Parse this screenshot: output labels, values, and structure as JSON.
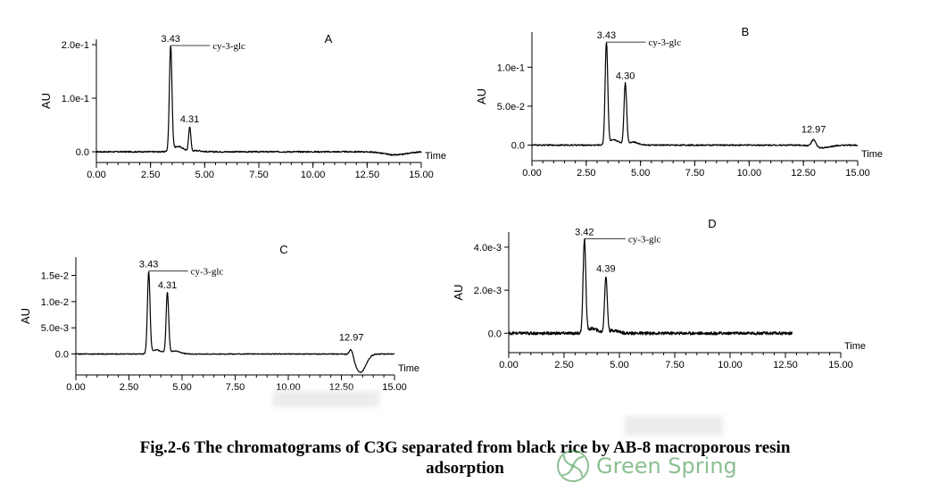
{
  "figure": {
    "caption_line1": "Fig.2-6    The chromatograms of C3G separated from black rice by AB-8 macroporous resin",
    "caption_line2": "adsorption",
    "watermark_text": "Green Spring",
    "watermark_color": "#2e8b3a"
  },
  "chart_data": [
    {
      "type": "line",
      "panel_label": "A",
      "xlabel": "Time",
      "ylabel": "AU",
      "xlim": [
        0,
        15
      ],
      "ylim": [
        -0.02,
        0.21
      ],
      "x_ticks": [
        0,
        2.5,
        5,
        7.5,
        10,
        12.5,
        15
      ],
      "x_tick_labels": [
        "0.00",
        "2.50",
        "5.00",
        "7.50",
        "10.00",
        "12.50",
        "15.00"
      ],
      "y_ticks": [
        0,
        0.1,
        0.2
      ],
      "y_tick_labels": [
        "0.0",
        "1.0e-1",
        "2.0e-1"
      ],
      "peaks": [
        {
          "rt": 3.43,
          "label": "3.43",
          "height": 0.195,
          "width": 0.06,
          "compound": "cy-3-glc"
        },
        {
          "rt": 4.31,
          "label": "4.31",
          "height": 0.045,
          "width": 0.05,
          "compound": ""
        }
      ],
      "noise": 0.0012,
      "baseline_dip": {
        "at": 13.8,
        "depth": -0.006,
        "width": 0.5
      }
    },
    {
      "type": "line",
      "panel_label": "B",
      "xlabel": "Time",
      "ylabel": "AU",
      "xlim": [
        0,
        15
      ],
      "ylim": [
        -0.02,
        0.145
      ],
      "x_ticks": [
        0,
        2.5,
        5,
        7.5,
        10,
        12.5,
        15
      ],
      "x_tick_labels": [
        "0.00",
        "2.50",
        "5.00",
        "7.50",
        "10.00",
        "12.50",
        "15.00"
      ],
      "y_ticks": [
        0,
        0.05,
        0.1
      ],
      "y_tick_labels": [
        "0.0",
        "5.0e-2",
        "1.0e-1"
      ],
      "peaks": [
        {
          "rt": 3.43,
          "label": "3.43",
          "height": 0.13,
          "width": 0.06,
          "compound": "cy-3-glc"
        },
        {
          "rt": 4.3,
          "label": "4.30",
          "height": 0.078,
          "width": 0.06,
          "compound": ""
        },
        {
          "rt": 12.97,
          "label": "12.97",
          "height": 0.009,
          "width": 0.1,
          "compound": ""
        }
      ],
      "noise": 0.0008,
      "baseline_dip": {
        "at": 13.35,
        "depth": -0.004,
        "width": 0.4
      }
    },
    {
      "type": "line",
      "panel_label": "C",
      "xlabel": "Time",
      "ylabel": "AU",
      "xlim": [
        0,
        15
      ],
      "ylim": [
        -0.004,
        0.0185
      ],
      "x_ticks": [
        0,
        2.5,
        5,
        7.5,
        10,
        12.5,
        15
      ],
      "x_tick_labels": [
        "0.00",
        "2.50",
        "5.00",
        "7.50",
        "10.00",
        "12.50",
        "15.00"
      ],
      "y_ticks": [
        0,
        0.005,
        0.01,
        0.015
      ],
      "y_tick_labels": [
        "0.0",
        "5.0e-3",
        "1.0e-2",
        "1.5e-2"
      ],
      "peaks": [
        {
          "rt": 3.43,
          "label": "3.43",
          "height": 0.0155,
          "width": 0.06,
          "compound": "cy-3-glc"
        },
        {
          "rt": 4.31,
          "label": "4.31",
          "height": 0.0115,
          "width": 0.06,
          "compound": ""
        },
        {
          "rt": 12.97,
          "label": "12.97",
          "height": 0.0015,
          "width": 0.09,
          "compound": ""
        }
      ],
      "noise": 8e-05,
      "baseline_dip": {
        "at": 13.4,
        "depth": -0.0036,
        "width": 0.25
      }
    },
    {
      "type": "line",
      "panel_label": "D",
      "xlabel": "Time",
      "ylabel": "AU",
      "xlim": [
        0,
        15
      ],
      "ylim": [
        -0.0009,
        0.0047
      ],
      "x_ticks": [
        0,
        2.5,
        5,
        7.5,
        10,
        12.5,
        15
      ],
      "x_tick_labels": [
        "0.00",
        "2.50",
        "5.00",
        "7.50",
        "10.00",
        "12.50",
        "15.00"
      ],
      "y_ticks": [
        0,
        0.002,
        0.004
      ],
      "y_tick_labels": [
        "0.0",
        "2.0e-3",
        "4.0e-3"
      ],
      "peaks": [
        {
          "rt": 3.42,
          "label": "3.42",
          "height": 0.0043,
          "width": 0.06,
          "compound": "cy-3-glc"
        },
        {
          "rt": 4.39,
          "label": "4.39",
          "height": 0.0026,
          "width": 0.06,
          "compound": ""
        }
      ],
      "noise": 7e-05,
      "trace_end": 12.8
    }
  ]
}
